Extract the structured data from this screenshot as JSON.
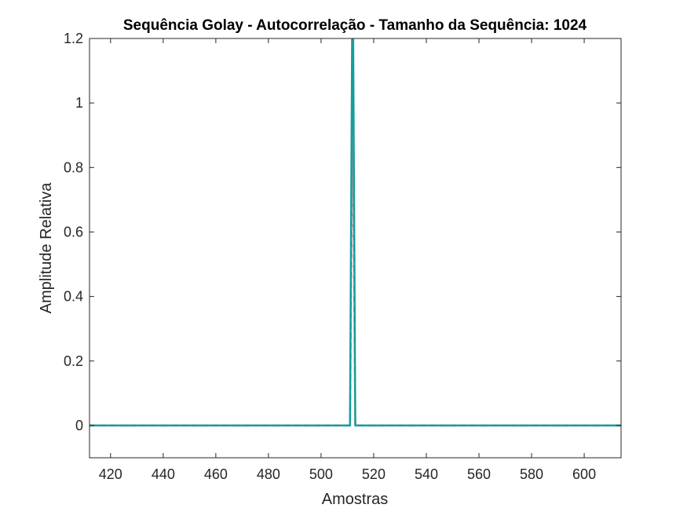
{
  "chart_data": {
    "type": "line",
    "title": "Sequência Golay - Autocorrelação - Tamanho da Sequência: 1024",
    "xlabel": "Amostras",
    "ylabel": "Amplitude Relativa",
    "xlim": [
      412,
      614
    ],
    "ylim": [
      -0.1,
      1.2
    ],
    "x_ticks": [
      420,
      440,
      460,
      480,
      500,
      520,
      540,
      560,
      580,
      600
    ],
    "y_ticks": [
      0,
      0.2,
      0.4,
      0.6,
      0.8,
      1,
      1.2
    ],
    "x_tick_labels": [
      "420",
      "440",
      "460",
      "480",
      "500",
      "520",
      "540",
      "560",
      "580",
      "600"
    ],
    "y_tick_labels": [
      "0",
      "0.2",
      "0.4",
      "0.6",
      "0.8",
      "1",
      "1.2"
    ],
    "grid": false,
    "box": true,
    "series": [
      {
        "color": "#d98c8c",
        "style": "dashed",
        "x": [
          412,
          511,
          512,
          513,
          614
        ],
        "y": [
          0,
          0,
          1,
          0,
          0
        ]
      },
      {
        "color": "#169c9c",
        "style": "solid",
        "x": [
          412,
          511,
          512,
          513,
          614
        ],
        "y": [
          0,
          0,
          1.5,
          0,
          0
        ]
      }
    ]
  }
}
